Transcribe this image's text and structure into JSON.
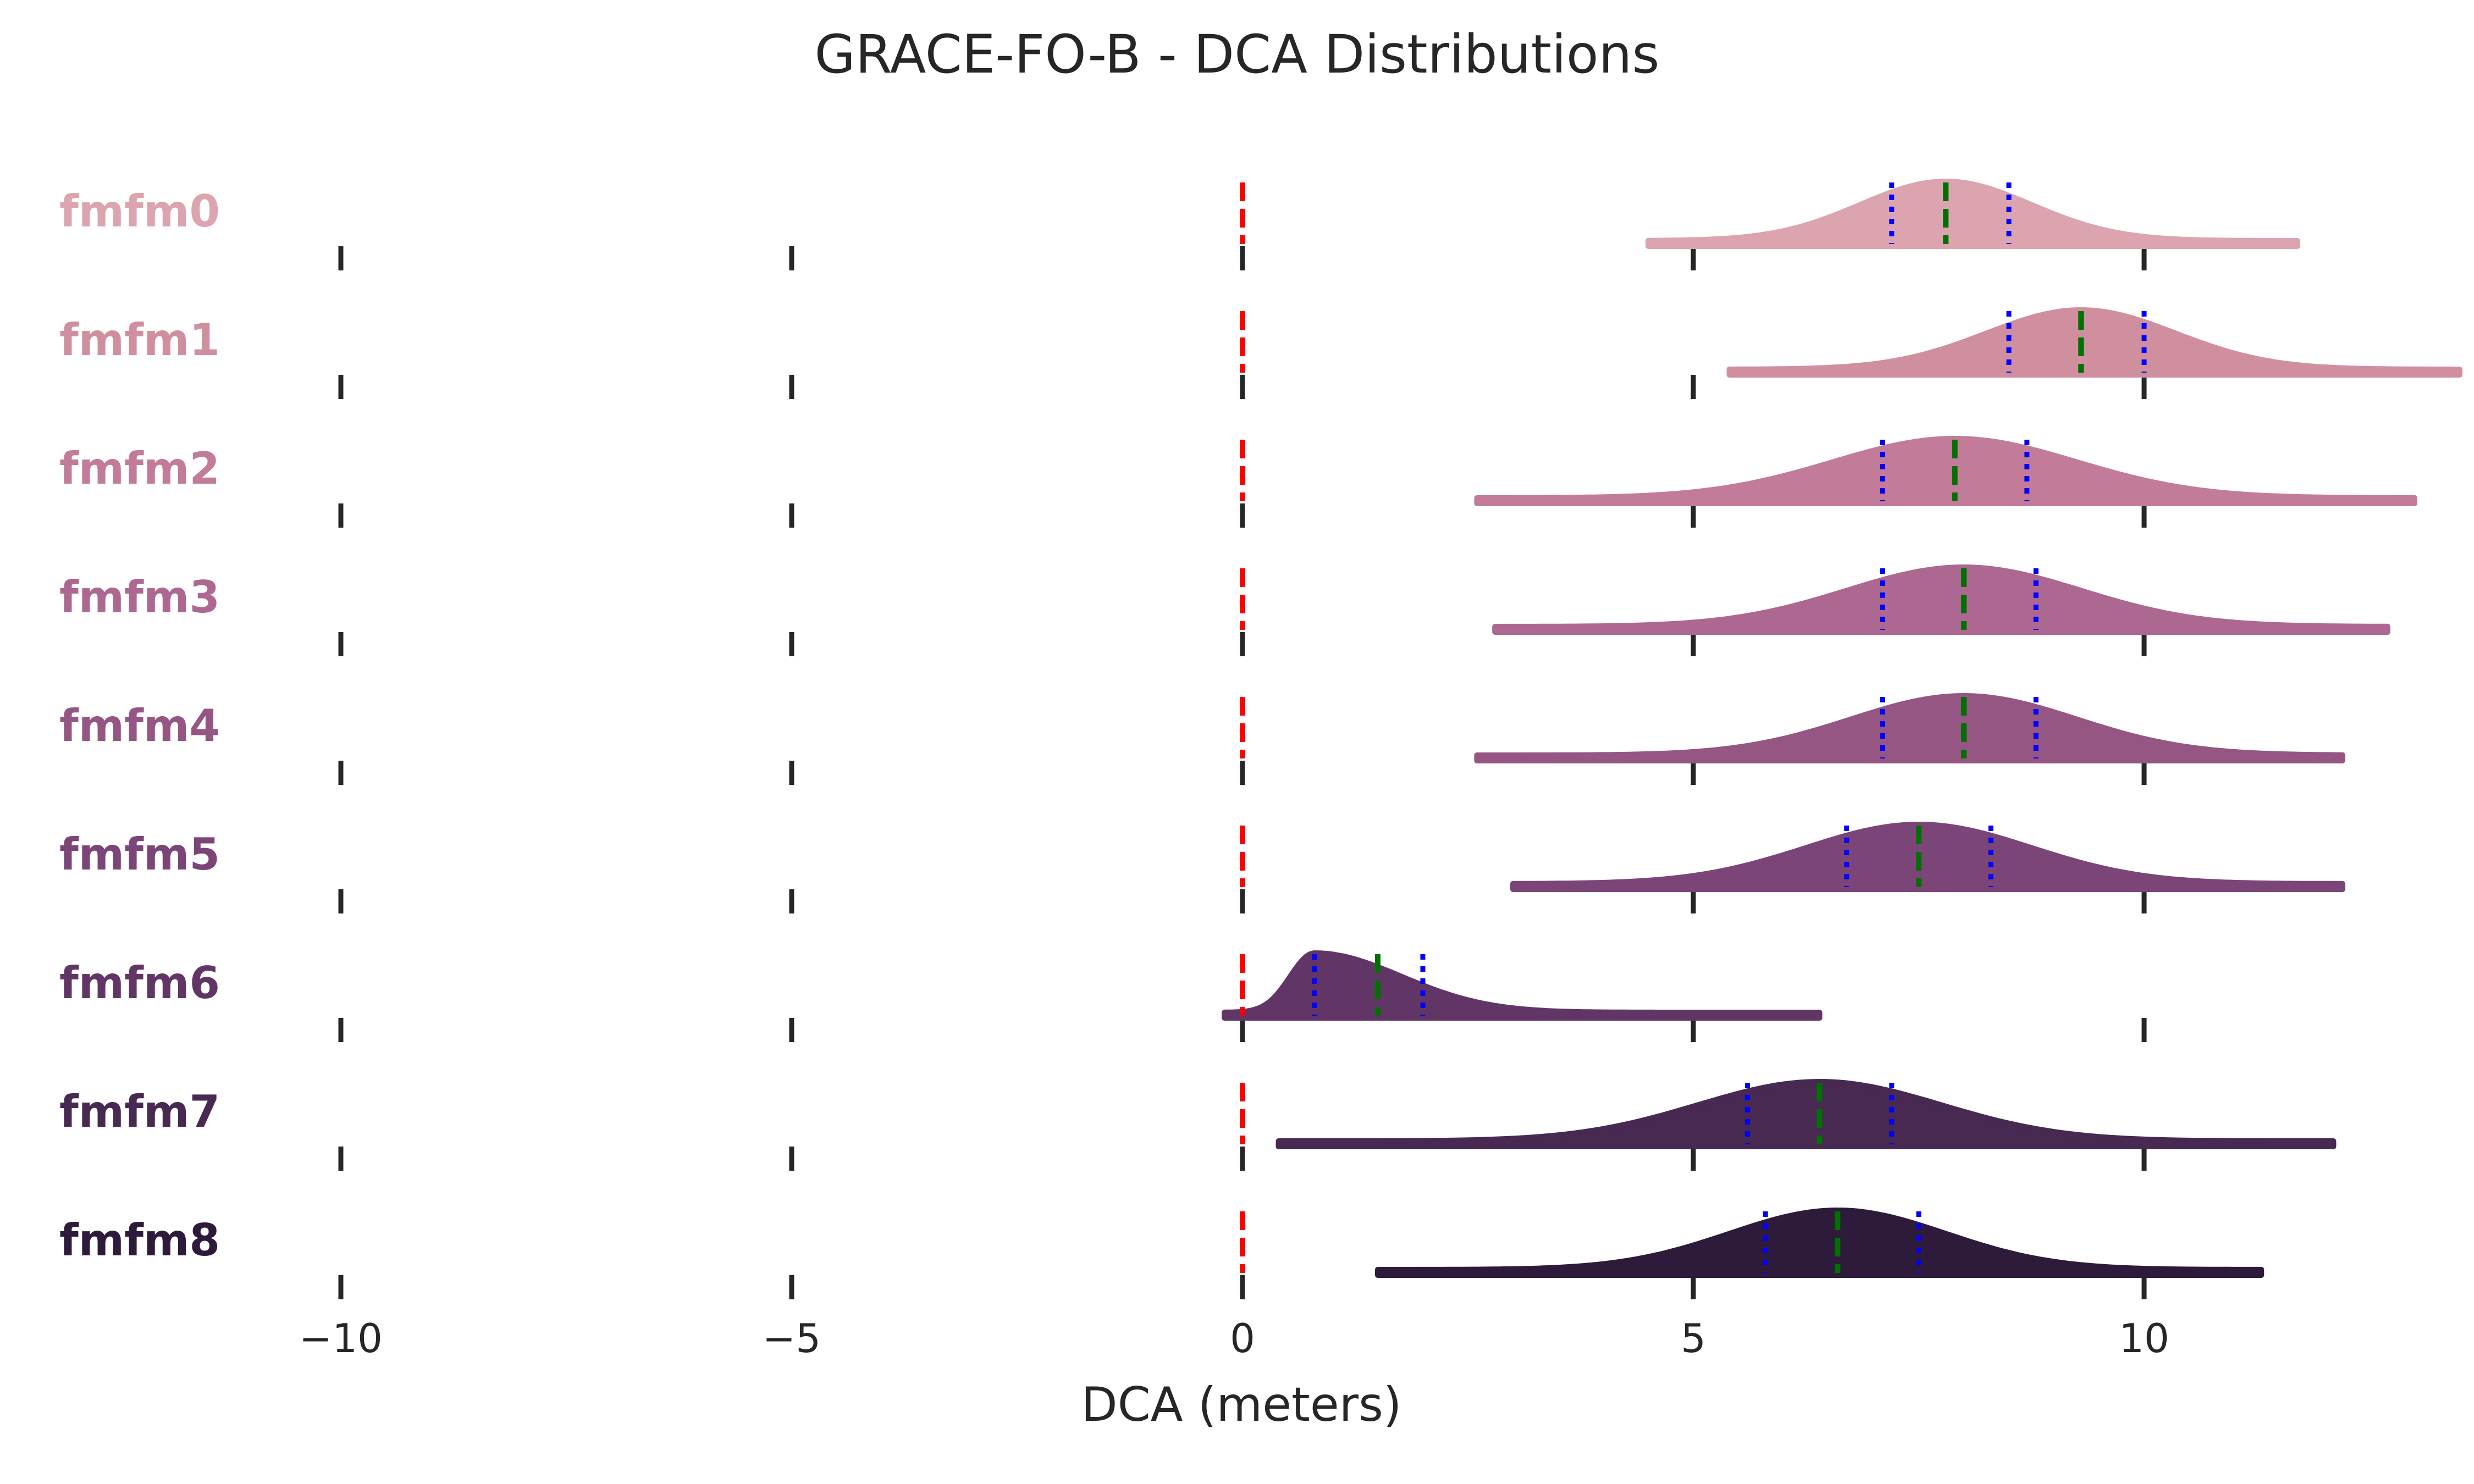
{
  "chart_data": {
    "type": "ridgeline",
    "title": "GRACE-FO-B - DCA Distributions",
    "xlabel": "DCA (meters)",
    "xlim": [
      -10,
      13.5
    ],
    "xticks": [
      -10,
      -5,
      0,
      5,
      10
    ],
    "xtick_labels": [
      "−10",
      "−5",
      "0",
      "5",
      "10"
    ],
    "reference_line": 0,
    "reference_color": "#ff0000",
    "median_color": "#007000",
    "quantile_color": "#0000ff",
    "series": [
      {
        "name": "fmfm0",
        "color": "#dba4af",
        "min": 4.5,
        "max": 11.7,
        "q1": 7.2,
        "median": 7.8,
        "q3": 8.5,
        "mode": 7.8,
        "spread": 0.95
      },
      {
        "name": "fmfm1",
        "color": "#d08f9f",
        "min": 5.4,
        "max": 13.5,
        "q1": 8.5,
        "median": 9.3,
        "q3": 10.0,
        "mode": 9.3,
        "spread": 1.05
      },
      {
        "name": "fmfm2",
        "color": "#c27b98",
        "min": 2.6,
        "max": 13.0,
        "q1": 7.1,
        "median": 7.9,
        "q3": 8.7,
        "mode": 7.9,
        "spread": 1.35
      },
      {
        "name": "fmfm3",
        "color": "#ad6891",
        "min": 2.8,
        "max": 12.7,
        "q1": 7.1,
        "median": 8.0,
        "q3": 8.8,
        "mode": 8.0,
        "spread": 1.3
      },
      {
        "name": "fmfm4",
        "color": "#955684",
        "min": 2.6,
        "max": 12.2,
        "q1": 7.1,
        "median": 8.0,
        "q3": 8.8,
        "mode": 8.0,
        "spread": 1.25
      },
      {
        "name": "fmfm5",
        "color": "#7b4578",
        "min": 3.0,
        "max": 12.2,
        "q1": 6.7,
        "median": 7.5,
        "q3": 8.3,
        "mode": 7.5,
        "spread": 1.25
      },
      {
        "name": "fmfm6",
        "color": "#613666",
        "min": -0.2,
        "max": 6.4,
        "q1": 0.8,
        "median": 1.5,
        "q3": 2.0,
        "mode": 0.8,
        "spread": 0.6
      },
      {
        "name": "fmfm7",
        "color": "#472951",
        "min": 0.4,
        "max": 12.1,
        "q1": 5.6,
        "median": 6.4,
        "q3": 7.2,
        "mode": 6.4,
        "spread": 1.35
      },
      {
        "name": "fmfm8",
        "color": "#2e1b3b",
        "min": 1.5,
        "max": 11.3,
        "q1": 5.8,
        "median": 6.6,
        "q3": 7.5,
        "mode": 6.6,
        "spread": 1.2
      }
    ]
  }
}
